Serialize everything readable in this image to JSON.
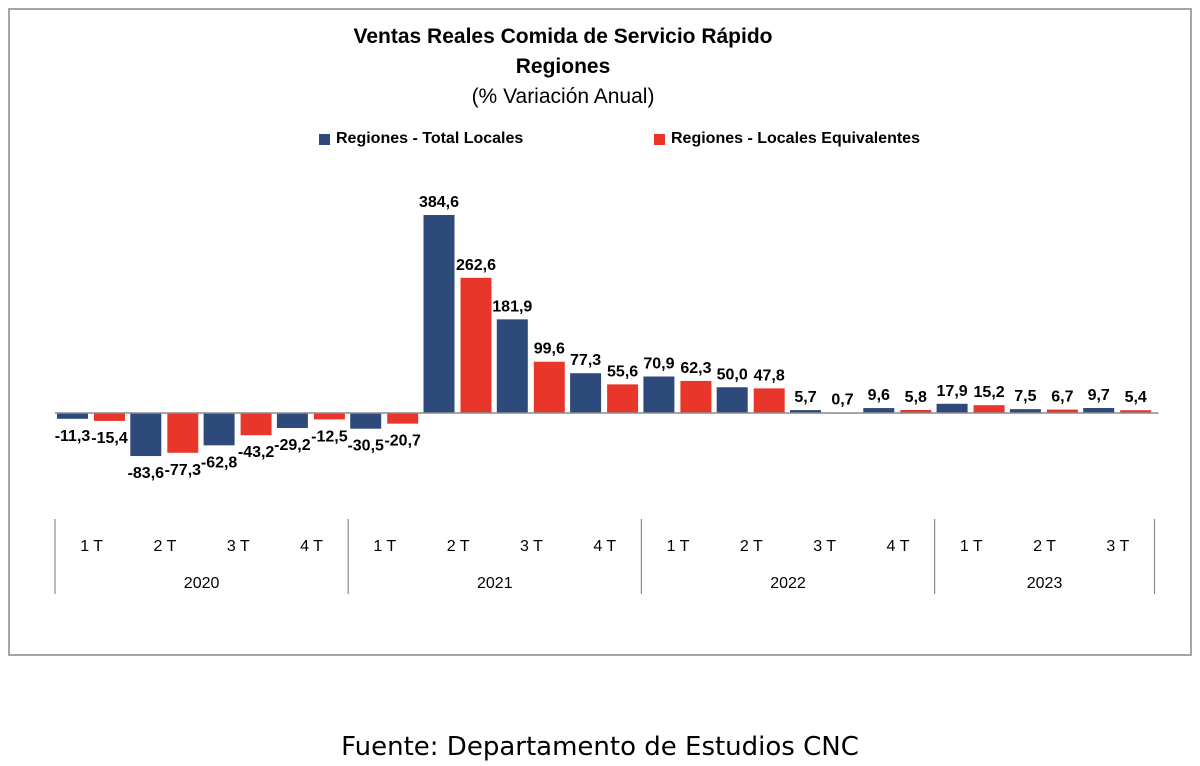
{
  "title": "Ventas Reales Comida de Servicio Rápido",
  "subtitle": "Regiones",
  "unit_label": "(% Variación Anual)",
  "source": "Fuente: Departamento de Estudios CNC",
  "colors": {
    "series_total": "#2e4a7a",
    "series_equiv": "#e8372a",
    "axis": "#8c8c8c",
    "frame": "#a6a6a6"
  },
  "chart_data": {
    "type": "bar",
    "categories": [
      "1 T",
      "2 T",
      "3 T",
      "4 T",
      "1 T",
      "2 T",
      "3 T",
      "4 T",
      "1 T",
      "2 T",
      "3 T",
      "4 T",
      "1 T",
      "2 T",
      "3 T"
    ],
    "years": [
      {
        "label": "2020",
        "quarters": 4
      },
      {
        "label": "2021",
        "quarters": 4
      },
      {
        "label": "2022",
        "quarters": 4
      },
      {
        "label": "2023",
        "quarters": 3
      }
    ],
    "series": [
      {
        "name": "Regiones - Total Locales",
        "color": "#2e4a7a",
        "values": [
          -11.3,
          -83.6,
          -62.8,
          -29.2,
          -30.5,
          384.6,
          181.9,
          77.3,
          70.9,
          50.0,
          5.7,
          9.6,
          17.9,
          7.5,
          9.7
        ]
      },
      {
        "name": "Regiones - Locales Equivalentes",
        "color": "#e8372a",
        "values": [
          -15.4,
          -77.3,
          -43.2,
          -12.5,
          -20.7,
          262.6,
          99.6,
          55.6,
          62.3,
          47.8,
          0.7,
          5.8,
          15.2,
          6.7,
          5.4
        ]
      }
    ],
    "data_labels": [
      [
        "-11,3",
        "-83,6",
        "-62,8",
        "-29,2",
        "-30,5",
        "384,6",
        "181,9",
        "77,3",
        "70,9",
        "50,0",
        "5,7",
        "9,6",
        "17,9",
        "7,5",
        "9,7"
      ],
      [
        "-15,4",
        "-77,3",
        "-43,2",
        "-12,5",
        "-20,7",
        "262,6",
        "99,6",
        "55,6",
        "62,3",
        "47,8",
        "0,7",
        "5,8",
        "15,2",
        "6,7",
        "5,4"
      ]
    ],
    "ylim": [
      -110,
      400
    ],
    "legend_position": "top",
    "grid": false
  }
}
